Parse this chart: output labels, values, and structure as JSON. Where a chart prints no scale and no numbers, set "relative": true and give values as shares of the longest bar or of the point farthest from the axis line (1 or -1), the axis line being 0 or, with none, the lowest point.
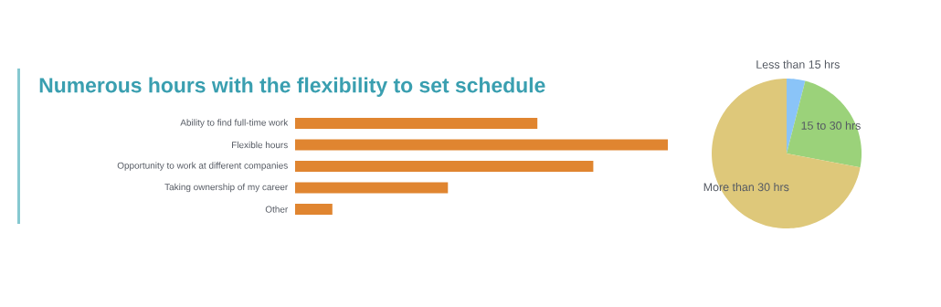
{
  "chart_data": [
    {
      "type": "bar",
      "orientation": "horizontal",
      "relative": true,
      "title": "Numerous hours with the flexibility to set schedule",
      "categories": [
        "Ability to find full-time work",
        "Flexible hours",
        "Opportunity to work at different companies",
        "Taking ownership of my career",
        "Other"
      ],
      "values": [
        0.65,
        1,
        0.8,
        0.41,
        0.1
      ],
      "color": "#e08530"
    },
    {
      "type": "pie",
      "categories": [
        "Less than 15 hrs",
        "15 to 30 hrs",
        "More than 30 hrs"
      ],
      "values": [
        4,
        24,
        72
      ],
      "colors": [
        "#8ac4f8",
        "#9bd27a",
        "#dec87a"
      ]
    }
  ]
}
